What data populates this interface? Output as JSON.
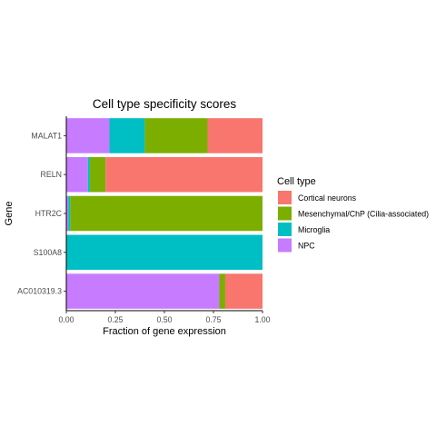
{
  "chart_data": {
    "type": "bar",
    "orientation": "horizontal",
    "stacked": true,
    "title": "Cell type specificity scores",
    "xlabel": "Fraction of gene expression",
    "ylabel": "Gene",
    "xlim": [
      0,
      1
    ],
    "xticks": [
      "0.00",
      "0.25",
      "0.50",
      "0.75",
      "1.00"
    ],
    "grid": false,
    "legend_position": "right",
    "legend_title": "Cell type",
    "categories": [
      "MALAT1",
      "RELN",
      "HTR2C",
      "S100A8",
      "AC010319.3"
    ],
    "series": [
      {
        "name": "NPC",
        "color": "#C77CFF",
        "values": [
          0.22,
          0.11,
          0.01,
          0.0,
          0.78
        ]
      },
      {
        "name": "Microglia",
        "color": "#00BFC4",
        "values": [
          0.18,
          0.01,
          0.01,
          1.0,
          0.0
        ]
      },
      {
        "name": "Mesenchymal/ChP (Cilia-associated)",
        "color": "#7CAE00",
        "values": [
          0.32,
          0.08,
          0.98,
          0.0,
          0.03
        ]
      },
      {
        "name": "Cortical neurons",
        "color": "#F8766D",
        "values": [
          0.28,
          0.8,
          0.0,
          0.0,
          0.19
        ]
      }
    ],
    "legend_order": [
      "Cortical neurons",
      "Mesenchymal/ChP (Cilia-associated)",
      "Microglia",
      "NPC"
    ]
  }
}
